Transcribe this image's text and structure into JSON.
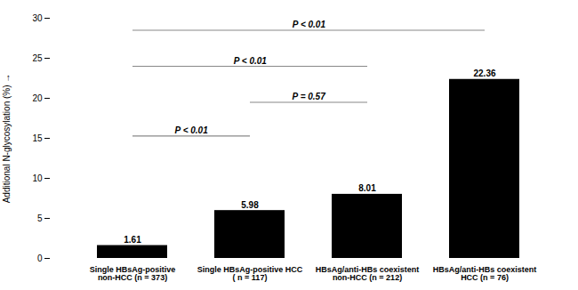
{
  "chart_data": {
    "type": "bar",
    "categories": [
      "Single HBsAg-positive\nnon-HCC (n = 373)",
      "Single HBsAg-positive HCC\n( n = 117)",
      "HBsAg/anti-HBs coexistent\nnon-HCC (n = 212)",
      "HBsAg/anti-HBs coexistent\nHCC (n = 76)"
    ],
    "values": [
      1.61,
      5.98,
      8.01,
      22.36
    ],
    "color": "#000000",
    "ylabel": "Additional N-glycosylation (%)",
    "ylim": [
      0,
      30
    ],
    "yticks": [
      0,
      5,
      10,
      15,
      20,
      25,
      30
    ],
    "grid": false,
    "data_labels": true,
    "annotations": [
      {
        "text": "P < 0.01",
        "from": "Single HBsAg-positive\nnon-HCC (n = 373)",
        "to": "Single HBsAg-positive HCC\n( n = 117)",
        "y": 15.3
      },
      {
        "text": "P < 0.01",
        "from": "Single HBsAg-positive\nnon-HCC (n = 373)",
        "to": "HBsAg/anti-HBs coexistent\nnon-HCC (n = 212)",
        "y": 24.0
      },
      {
        "text": "P = 0.57",
        "from": "Single HBsAg-positive HCC\n( n = 117)",
        "to": "HBsAg/anti-HBs coexistent\nnon-HCC (n = 212)",
        "y": 19.5
      },
      {
        "text": "P < 0.01",
        "from": "Single HBsAg-positive\nnon-HCC (n = 373)",
        "to": "HBsAg/anti-HBs coexistent\nHCC (n = 76)",
        "y": 28.5
      }
    ]
  }
}
